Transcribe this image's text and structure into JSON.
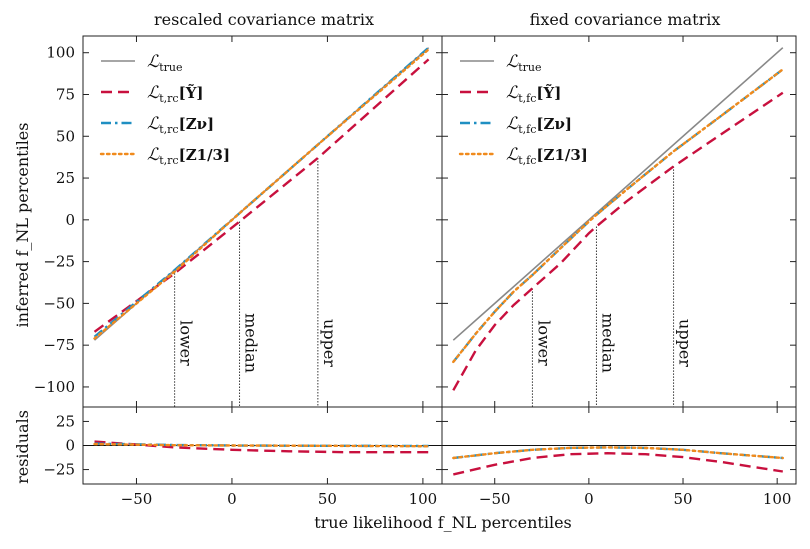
{
  "figure": {
    "xlabel": "true likelihood f_NL percentiles",
    "ylabel_main": "inferred f_NL percentiles",
    "ylabel_resid": "residuals"
  },
  "chart_data": [
    {
      "type": "line",
      "title": "rescaled covariance matrix",
      "xlabel": "true likelihood f_NL percentiles",
      "ylabel": "inferred f_NL percentiles",
      "xlim": [
        -78,
        110
      ],
      "ylim": [
        -112,
        110
      ],
      "xticks": [
        -50,
        0,
        50,
        100
      ],
      "yticks": [
        -100,
        -75,
        -50,
        -25,
        0,
        25,
        50,
        75,
        100
      ],
      "vlines": [
        {
          "label": "lower",
          "x": -30
        },
        {
          "label": "median",
          "x": 4
        },
        {
          "label": "upper",
          "x": 45
        }
      ],
      "series": [
        {
          "name": "L_true",
          "legend_main": "ℒ",
          "legend_sub": "true",
          "legend_arg": "",
          "style": "solid",
          "color": "#888888",
          "x": [
            -72,
            103
          ],
          "y": [
            -72,
            103
          ]
        },
        {
          "name": "L_t,rc[Ỹ]",
          "legend_main": "ℒ",
          "legend_sub": "t,rc",
          "legend_arg": "[Ỹ]",
          "style": "dashed",
          "color": "#c8103e",
          "x": [
            -72,
            -30,
            4,
            45,
            103
          ],
          "y": [
            -67,
            -32,
            -1,
            37,
            96
          ]
        },
        {
          "name": "L_t,rc[Z_ν]",
          "legend_main": "ℒ",
          "legend_sub": "t,rc",
          "legend_arg": "[Zν]",
          "style": "dashdot",
          "color": "#1f8fc2",
          "x": [
            -72,
            -30,
            4,
            45,
            103
          ],
          "y": [
            -70,
            -30,
            4,
            45,
            103
          ]
        },
        {
          "name": "L_t,rc[Z_1/3]",
          "legend_main": "ℒ",
          "legend_sub": "t,rc",
          "legend_arg": "[Z1/3]",
          "style": "dotted",
          "color": "#f08a1c",
          "x": [
            -72,
            -30,
            4,
            45,
            103
          ],
          "y": [
            -71,
            -31,
            4,
            45,
            102
          ]
        }
      ],
      "residuals": {
        "ylim": [
          -40,
          40
        ],
        "yticks": [
          -25,
          0,
          25
        ],
        "series": [
          {
            "name": "L_t,rc[Ỹ]",
            "style": "dashed",
            "color": "#c8103e",
            "x": [
              -72,
              -50,
              -30,
              0,
              30,
              60,
              103
            ],
            "y": [
              4,
              1,
              -2,
              -4.5,
              -6,
              -7,
              -7
            ]
          },
          {
            "name": "L_t,rc[Z_ν]",
            "style": "dashdot",
            "color": "#1f8fc2",
            "x": [
              -72,
              -30,
              0,
              50,
              103
            ],
            "y": [
              2,
              0.5,
              0,
              -0.3,
              -0.5
            ]
          },
          {
            "name": "L_t,rc[Z_1/3]",
            "style": "dotted",
            "color": "#f08a1c",
            "x": [
              -72,
              -30,
              0,
              50,
              103
            ],
            "y": [
              1.5,
              0.3,
              0,
              -0.3,
              -0.8
            ]
          }
        ]
      }
    },
    {
      "type": "line",
      "title": "fixed covariance matrix",
      "xlabel": "true likelihood f_NL percentiles",
      "ylabel": "inferred f_NL percentiles",
      "xlim": [
        -78,
        110
      ],
      "ylim": [
        -112,
        110
      ],
      "xticks": [
        -50,
        0,
        50,
        100
      ],
      "yticks": [
        -100,
        -75,
        -50,
        -25,
        0,
        25,
        50,
        75,
        100
      ],
      "vlines": [
        {
          "label": "lower",
          "x": -30
        },
        {
          "label": "median",
          "x": 4
        },
        {
          "label": "upper",
          "x": 45
        }
      ],
      "series": [
        {
          "name": "L_true",
          "legend_main": "ℒ",
          "legend_sub": "true",
          "legend_arg": "",
          "style": "solid",
          "color": "#888888",
          "x": [
            -72,
            103
          ],
          "y": [
            -72,
            103
          ]
        },
        {
          "name": "L_t,fc[Ỹ]",
          "legend_main": "ℒ",
          "legend_sub": "t,fc",
          "legend_arg": "[Ỹ]",
          "style": "dashed",
          "color": "#c8103e",
          "x": [
            -72,
            -60,
            -50,
            -40,
            -30,
            -15,
            0,
            4,
            20,
            45,
            70,
            103
          ],
          "y": [
            -102,
            -78,
            -63,
            -51,
            -41,
            -26,
            -8,
            -4,
            11,
            32,
            51,
            76
          ]
        },
        {
          "name": "L_t,fc[Z_ν]",
          "legend_main": "ℒ",
          "legend_sub": "t,fc",
          "legend_arg": "[Zν]",
          "style": "dashdot",
          "color": "#1f8fc2",
          "x": [
            -72,
            -60,
            -50,
            -40,
            -30,
            -15,
            0,
            4,
            20,
            45,
            70,
            103
          ],
          "y": [
            -85,
            -68,
            -55,
            -43,
            -33,
            -17,
            -1,
            3,
            18,
            41,
            62,
            90
          ]
        },
        {
          "name": "L_t,fc[Z_1/3]",
          "legend_main": "ℒ",
          "legend_sub": "t,fc",
          "legend_arg": "[Z1/3]",
          "style": "dotted",
          "color": "#f08a1c",
          "x": [
            -72,
            -60,
            -50,
            -40,
            -30,
            -15,
            0,
            4,
            20,
            45,
            70,
            103
          ],
          "y": [
            -85,
            -68,
            -55,
            -43,
            -33,
            -17,
            -1,
            3,
            18,
            41,
            62,
            90
          ]
        }
      ],
      "residuals": {
        "ylim": [
          -40,
          40
        ],
        "yticks": [
          -25,
          0,
          25
        ],
        "series": [
          {
            "name": "L_t,fc[Ỹ]",
            "style": "dashed",
            "color": "#c8103e",
            "x": [
              -72,
              -50,
              -30,
              -10,
              10,
              30,
              50,
              70,
              103
            ],
            "y": [
              -30,
              -20,
              -13,
              -9,
              -8,
              -9,
              -12,
              -17,
              -27
            ]
          },
          {
            "name": "L_t,fc[Z_ν]",
            "style": "dashdot",
            "color": "#1f8fc2",
            "x": [
              -72,
              -50,
              -30,
              -10,
              10,
              30,
              50,
              70,
              103
            ],
            "y": [
              -13,
              -8,
              -4.5,
              -2.5,
              -2,
              -2.5,
              -4.5,
              -8,
              -13
            ]
          },
          {
            "name": "L_t,fc[Z_1/3]",
            "style": "dotted",
            "color": "#f08a1c",
            "x": [
              -72,
              -50,
              -30,
              -10,
              10,
              30,
              50,
              70,
              103
            ],
            "y": [
              -13,
              -8,
              -4.5,
              -2.5,
              -2,
              -2.5,
              -4.5,
              -8,
              -13
            ]
          }
        ]
      }
    }
  ]
}
